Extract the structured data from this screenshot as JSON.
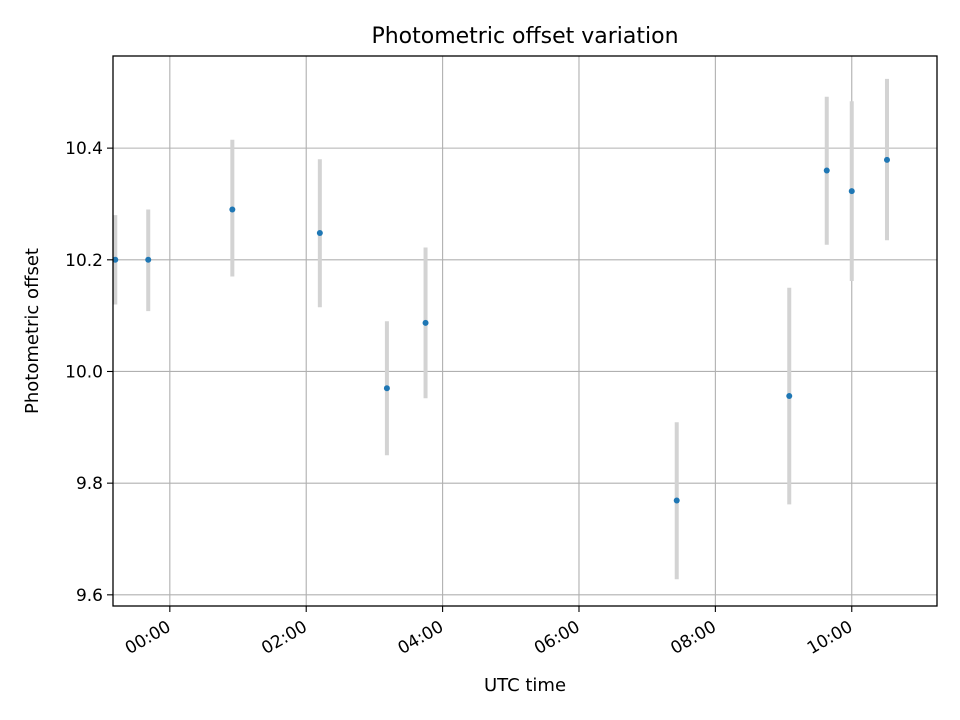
{
  "chart_data": {
    "type": "scatter",
    "title": "Photometric offset variation",
    "xlabel": "UTC time",
    "ylabel": "Photometric offset",
    "x_ticks": [
      "00:00",
      "02:00",
      "04:00",
      "06:00",
      "08:00",
      "10:00"
    ],
    "y_ticks": [
      "9.6",
      "9.8",
      "10.0",
      "10.2",
      "10.4"
    ],
    "xlim": [
      "-00:50",
      "11:15"
    ],
    "ylim": [
      9.58,
      10.565
    ],
    "grid": true,
    "points": [
      {
        "x": "-00:48",
        "y": 10.2,
        "yerr_low": 10.12,
        "yerr_high": 10.28
      },
      {
        "x": "-00:19",
        "y": 10.2,
        "yerr_low": 10.108,
        "yerr_high": 10.29
      },
      {
        "x": "00:55",
        "y": 10.29,
        "yerr_low": 10.17,
        "yerr_high": 10.415
      },
      {
        "x": "02:12",
        "y": 10.248,
        "yerr_low": 10.115,
        "yerr_high": 10.38
      },
      {
        "x": "03:11",
        "y": 9.97,
        "yerr_low": 9.85,
        "yerr_high": 10.09
      },
      {
        "x": "03:45",
        "y": 10.087,
        "yerr_low": 9.952,
        "yerr_high": 10.222
      },
      {
        "x": "07:26",
        "y": 9.769,
        "yerr_low": 9.628,
        "yerr_high": 9.909
      },
      {
        "x": "09:05",
        "y": 9.956,
        "yerr_low": 9.762,
        "yerr_high": 10.15
      },
      {
        "x": "09:38",
        "y": 10.36,
        "yerr_low": 10.227,
        "yerr_high": 10.492
      },
      {
        "x": "10:00",
        "y": 10.323,
        "yerr_low": 10.162,
        "yerr_high": 10.484
      },
      {
        "x": "10:31",
        "y": 10.379,
        "yerr_low": 10.235,
        "yerr_high": 10.524
      }
    ],
    "colors": {
      "marker": "#1f77b4",
      "errorbar": "#d3d3d3",
      "grid": "#b0b0b0",
      "axes": "#000000"
    }
  }
}
